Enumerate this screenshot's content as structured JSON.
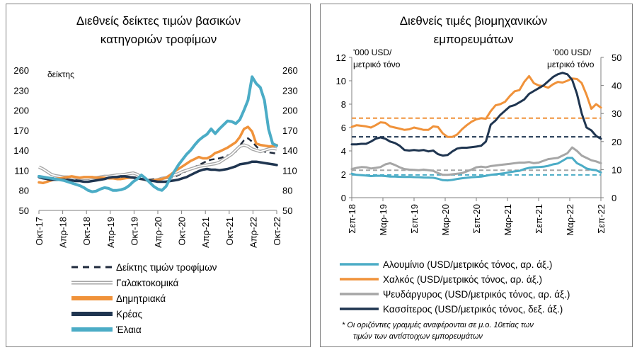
{
  "chart_data": [
    {
      "type": "line",
      "title_lines": [
        "Διεθνείς δείκτες τιμών βασικών",
        "κατηγοριών τροφίμων"
      ],
      "unit_label": "δείκτης",
      "ylim": [
        50,
        260
      ],
      "y_ticks": [
        "50",
        "80",
        "110",
        "140",
        "170",
        "200",
        "230",
        "260"
      ],
      "x_ticks": [
        "Οκτ-17",
        "Απρ-18",
        "Οκτ-18",
        "Απρ-19",
        "Οκτ-19",
        "Απρ-20",
        "Οκτ-20",
        "Απρ-21",
        "Οκτ-21",
        "Απρ-22",
        "Οκτ-22"
      ],
      "grid": false,
      "legend_position": "bottom",
      "series": [
        {
          "name": "Δείκτης τιμών τροφίμων",
          "color": "#1f2a3c",
          "style": "dashed",
          "values": [
            100,
            99,
            98,
            98,
            99,
            99,
            98,
            97,
            96,
            96,
            96,
            97,
            97,
            98,
            98,
            99,
            99,
            99,
            99,
            100,
            100,
            100,
            100,
            100,
            99,
            98,
            97,
            96,
            97,
            97,
            97,
            98,
            99,
            100,
            103,
            106,
            109,
            112,
            115,
            118,
            121,
            124,
            126,
            127,
            128,
            130,
            132,
            134,
            138,
            147,
            155,
            158,
            153,
            146,
            140,
            138,
            137,
            136,
            135
          ]
        },
        {
          "name": "Γαλακτοκομικά",
          "color": "#a6a6a6",
          "style": "double",
          "values": [
            115,
            112,
            108,
            104,
            102,
            101,
            100,
            100,
            99,
            99,
            98,
            98,
            98,
            99,
            99,
            100,
            101,
            101,
            102,
            103,
            103,
            104,
            105,
            106,
            104,
            100,
            96,
            94,
            95,
            96,
            98,
            99,
            101,
            103,
            105,
            108,
            110,
            112,
            114,
            116,
            117,
            118,
            119,
            120,
            122,
            126,
            130,
            134,
            140,
            146,
            148,
            146,
            142,
            140,
            138,
            140,
            142,
            143,
            142
          ]
        },
        {
          "name": "Δημητριακά",
          "color": "#f0923a",
          "style": "solid",
          "values": [
            92,
            91,
            93,
            95,
            97,
            98,
            99,
            100,
            101,
            100,
            99,
            100,
            100,
            100,
            99,
            99,
            99,
            98,
            98,
            97,
            97,
            98,
            99,
            99,
            98,
            97,
            96,
            95,
            95,
            96,
            97,
            99,
            103,
            108,
            112,
            116,
            120,
            124,
            127,
            130,
            128,
            128,
            131,
            136,
            138,
            141,
            144,
            148,
            152,
            160,
            172,
            175,
            168,
            150,
            148,
            147,
            146,
            146,
            148
          ]
        },
        {
          "name": "Κρέας",
          "color": "#1f3550",
          "style": "solid",
          "values": [
            100,
            98,
            97,
            96,
            96,
            96,
            96,
            95,
            95,
            94,
            94,
            93,
            93,
            94,
            95,
            96,
            97,
            99,
            100,
            100,
            101,
            101,
            100,
            99,
            98,
            97,
            96,
            95,
            94,
            93,
            93,
            93,
            94,
            95,
            96,
            98,
            100,
            103,
            106,
            109,
            111,
            112,
            111,
            111,
            110,
            111,
            112,
            114,
            116,
            119,
            120,
            121,
            123,
            123,
            122,
            121,
            120,
            119,
            118
          ]
        },
        {
          "name": "Έλαια",
          "color": "#4bacc6",
          "style": "solid",
          "values": [
            101,
            100,
            99,
            98,
            97,
            96,
            95,
            93,
            91,
            89,
            87,
            84,
            80,
            78,
            79,
            82,
            84,
            83,
            80,
            80,
            81,
            83,
            87,
            93,
            97,
            103,
            98,
            92,
            86,
            82,
            80,
            86,
            98,
            108,
            118,
            126,
            134,
            140,
            148,
            155,
            160,
            164,
            172,
            165,
            172,
            178,
            184,
            183,
            180,
            186,
            200,
            215,
            250,
            240,
            234,
            215,
            172,
            150,
            147
          ]
        }
      ]
    },
    {
      "type": "line",
      "title_lines": [
        "Διεθνείς τιμές βιομηχανικών",
        "εμπορευμάτων"
      ],
      "left_unit_lines": [
        "'000 USD/",
        "μετρικό τόνο"
      ],
      "right_unit_lines": [
        "'000 USD/",
        "μετρικό τόνο"
      ],
      "left_ylim": [
        0,
        12
      ],
      "left_y_ticks": [
        "0",
        "2",
        "4",
        "6",
        "8",
        "10",
        "12"
      ],
      "right_ylim": [
        0,
        50
      ],
      "right_y_ticks": [
        "0",
        "10",
        "20",
        "30",
        "40",
        "50"
      ],
      "x_ticks": [
        "Σεπ-18",
        "Μαρ-19",
        "Σεπ-19",
        "Μαρ-20",
        "Σεπ-20",
        "Μαρ-21",
        "Σεπ-21",
        "Μαρ-22",
        "Σεπ-22"
      ],
      "grid": false,
      "legend_position": "bottom",
      "reference_lines": [
        {
          "axis": "left",
          "value": 6.8,
          "color": "#f0923a"
        },
        {
          "axis": "left",
          "value": 2.35,
          "color": "#a6a6a6"
        },
        {
          "axis": "left",
          "value": 1.95,
          "color": "#4bacc6"
        },
        {
          "axis": "right",
          "value": 21.7,
          "color": "#1f3550"
        }
      ],
      "series": [
        {
          "name": "Αλουμίνιο (USD/μετρικός τόνος, αρ. άξ.)",
          "axis": "left",
          "color": "#4bacc6",
          "values": [
            2.05,
            1.95,
            1.93,
            1.9,
            1.85,
            1.87,
            1.88,
            1.85,
            1.8,
            1.8,
            1.78,
            1.77,
            1.78,
            1.76,
            1.75,
            1.73,
            1.72,
            1.7,
            1.62,
            1.5,
            1.48,
            1.52,
            1.6,
            1.66,
            1.7,
            1.75,
            1.77,
            1.8,
            1.87,
            1.95,
            2.0,
            2.05,
            2.1,
            2.18,
            2.25,
            2.3,
            2.45,
            2.55,
            2.6,
            2.62,
            2.65,
            2.72,
            2.85,
            2.92,
            3.15,
            3.4,
            3.4,
            2.95,
            2.75,
            2.5,
            2.4,
            2.35,
            2.15
          ]
        },
        {
          "name": "Χαλκός (USD/μετρικός τόνος, αρ. άξ.)",
          "axis": "left",
          "color": "#f0923a",
          "values": [
            6.05,
            6.2,
            6.15,
            6.1,
            6.0,
            6.2,
            6.45,
            6.4,
            6.1,
            6.0,
            5.9,
            5.8,
            5.85,
            6.0,
            5.9,
            5.8,
            5.8,
            6.1,
            6.05,
            5.5,
            5.2,
            5.2,
            5.4,
            5.85,
            6.2,
            6.5,
            6.7,
            6.8,
            6.75,
            7.4,
            7.9,
            8.0,
            8.2,
            8.7,
            9.1,
            9.2,
            9.9,
            10.4,
            9.8,
            9.6,
            9.55,
            9.4,
            9.7,
            9.9,
            9.85,
            10.0,
            10.2,
            10.15,
            9.8,
            8.8,
            7.6,
            8.0,
            7.7
          ]
        },
        {
          "name": "Ψευδάργυρος (USD/μετρικός τόνος, αρ. άξ.)",
          "axis": "left",
          "color": "#a6a6a6",
          "values": [
            2.45,
            2.55,
            2.62,
            2.6,
            2.5,
            2.55,
            2.62,
            2.85,
            2.95,
            2.8,
            2.6,
            2.45,
            2.4,
            2.38,
            2.35,
            2.4,
            2.35,
            2.3,
            2.1,
            1.95,
            1.95,
            2.0,
            2.05,
            2.1,
            2.25,
            2.4,
            2.6,
            2.65,
            2.6,
            2.7,
            2.75,
            2.8,
            2.85,
            2.9,
            2.95,
            3.0,
            3.0,
            3.05,
            2.95,
            3.0,
            3.15,
            3.3,
            3.35,
            3.4,
            3.6,
            3.8,
            4.3,
            4.0,
            3.6,
            3.4,
            3.2,
            3.1,
            2.95
          ]
        },
        {
          "name": "Κασσίτερος (USD/μετρικός τόνος, δεξ. άξ.)",
          "axis": "right",
          "color": "#1f3550",
          "values": [
            19.0,
            19.0,
            19.2,
            19.2,
            20.0,
            21.0,
            21.5,
            21.0,
            20.0,
            19.5,
            18.5,
            17.0,
            16.8,
            17.0,
            16.8,
            17.0,
            16.5,
            16.8,
            15.5,
            15.0,
            15.2,
            16.5,
            17.5,
            17.8,
            17.8,
            18.0,
            18.2,
            18.5,
            20.0,
            26.0,
            27.5,
            29.5,
            31.0,
            32.5,
            33.0,
            34.0,
            35.0,
            37.0,
            38.0,
            39.0,
            40.0,
            41.5,
            43.0,
            44.0,
            44.5,
            44.0,
            42.0,
            37.0,
            30.0,
            25.0,
            24.0,
            22.0,
            21.0
          ]
        }
      ],
      "footnote_lines": [
        "* Οι οριζόντιες γραμμές αναφέρονται σε μ.ο. 10ετίας των",
        "τιμών των αντίστοιχων εμπορευμάτων"
      ]
    }
  ]
}
